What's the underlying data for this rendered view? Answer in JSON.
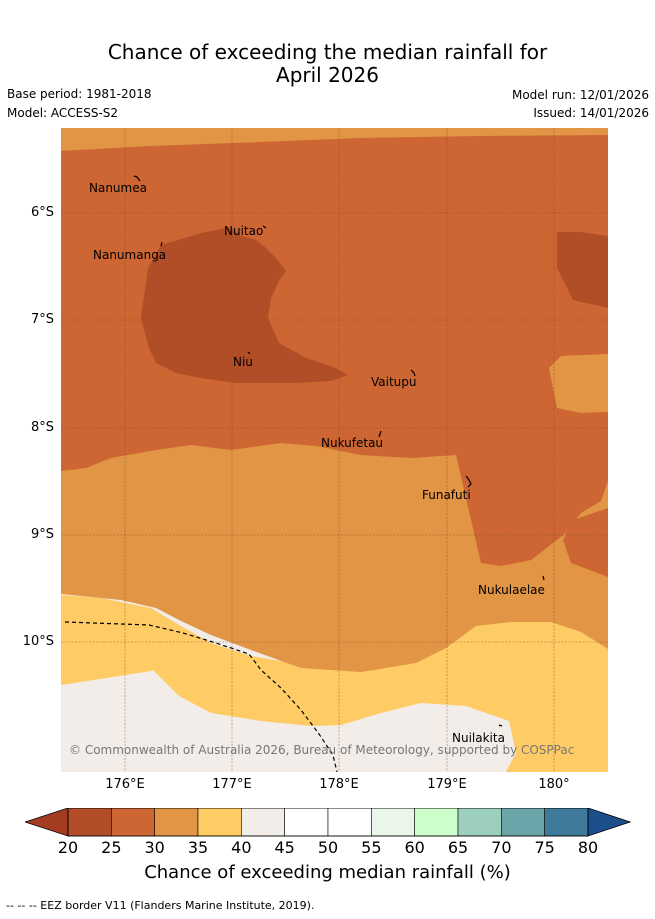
{
  "title": {
    "line1": "Chance of exceeding the median rainfall for",
    "line2": "April 2026"
  },
  "meta": {
    "base_period": "Base period: 1981-2018",
    "model": "Model: ACCESS-S2",
    "model_run": "Model run: 12/01/2026",
    "issued": "Issued: 14/01/2026"
  },
  "map": {
    "latitude_ticks": [
      "6°S",
      "7°S",
      "8°S",
      "9°S",
      "10°S"
    ],
    "longitude_ticks": [
      "176°E",
      "177°E",
      "178°E",
      "179°E",
      "180°"
    ],
    "places": [
      "Nanumea",
      "Nuitao",
      "Nanumanga",
      "Niu",
      "Vaitupu",
      "Nukufetau",
      "Funafuti",
      "Nukulaelae",
      "Nuilakita"
    ],
    "copyright": "© Commonwealth of Australia 2026, Bureau of Meteorology, supported by COSPPac"
  },
  "colorbar": {
    "title": "Chance of exceeding median rainfall (%)",
    "labels": [
      "20",
      "25",
      "30",
      "35",
      "40",
      "45",
      "50",
      "55",
      "60",
      "65",
      "70",
      "75",
      "80"
    ],
    "colors": [
      "#b14e28",
      "#cd6633",
      "#e19545",
      "#fecb65",
      "#f2ede8",
      "#ffffff",
      "#ffffff",
      "#eaf6e9",
      "#ccffcc",
      "#9ccfbc",
      "#6ca5a9",
      "#3f7a9a"
    ],
    "under_color": "#a33c21",
    "over_color": "#1d4f8c"
  },
  "footer": "--  --  -- EEZ border V11 (Flanders Marine Institute, 2019)."
}
